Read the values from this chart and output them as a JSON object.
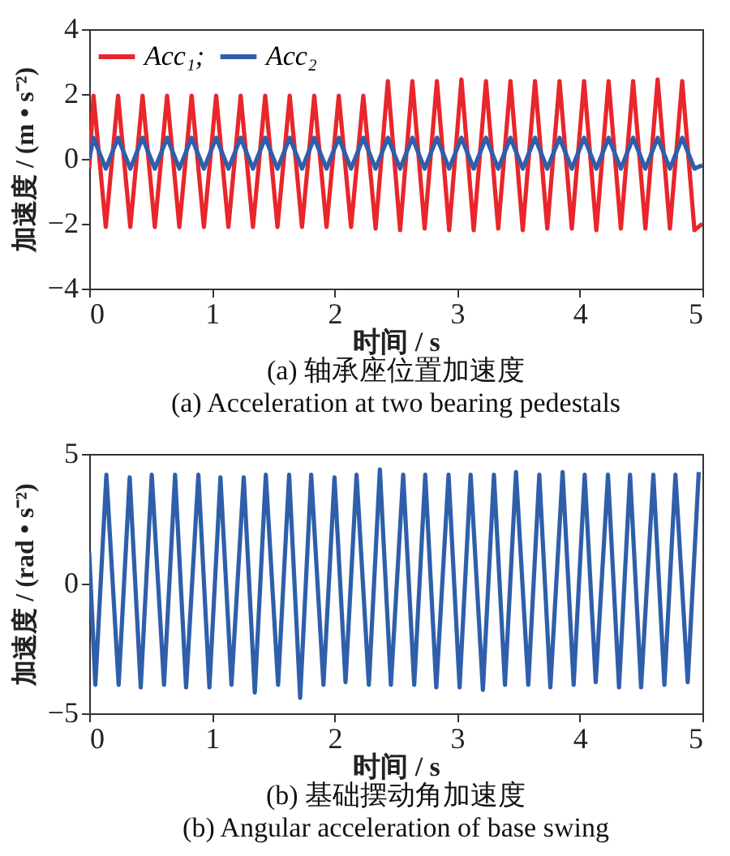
{
  "chart_data": [
    {
      "type": "line",
      "title": "(a) 轴承座位置加速度",
      "subtitle": "(a) Acceleration at two bearing pedestals",
      "xlabel": "时间 / s",
      "ylabel": "加速度 / (m • s⁻²)",
      "xlim": [
        0,
        5
      ],
      "xticks": [
        0,
        1,
        2,
        3,
        4,
        5
      ],
      "ylim": [
        -4,
        4
      ],
      "yticks": [
        -4,
        -2,
        0,
        2,
        4
      ],
      "grid": false,
      "legend": "top left",
      "series": [
        {
          "name": "Acc₁;",
          "color": "#e8262b",
          "x": [
            0,
            0.035,
            0.135,
            0.235,
            0.335,
            0.435,
            0.535,
            0.635,
            0.735,
            0.835,
            0.935,
            1.035,
            1.135,
            1.235,
            1.335,
            1.435,
            1.535,
            1.635,
            1.735,
            1.835,
            1.935,
            2.035,
            2.135,
            2.235,
            2.335,
            2.435,
            2.535,
            2.635,
            2.735,
            2.835,
            2.935,
            3.035,
            3.135,
            3.235,
            3.335,
            3.435,
            3.535,
            3.635,
            3.735,
            3.835,
            3.935,
            4.035,
            4.135,
            4.235,
            4.335,
            4.435,
            4.535,
            4.635,
            4.735,
            4.835,
            4.935,
            5
          ],
          "values": [
            -0.3,
            1.95,
            -2.1,
            1.95,
            -2.1,
            1.95,
            -2.1,
            1.95,
            -2.1,
            1.95,
            -2.1,
            1.95,
            -2.1,
            1.95,
            -2.1,
            1.95,
            -2.1,
            1.95,
            -2.1,
            1.95,
            -2.1,
            1.95,
            -2.1,
            1.95,
            -2.15,
            2.4,
            -2.2,
            2.4,
            -2.15,
            2.4,
            -2.2,
            2.45,
            -2.2,
            2.4,
            -2.15,
            2.4,
            -2.2,
            2.4,
            -2.15,
            2.4,
            -2.15,
            2.4,
            -2.2,
            2.4,
            -2.15,
            2.4,
            -2.15,
            2.45,
            -2.15,
            2.4,
            -2.2,
            -2.0
          ]
        },
        {
          "name": "Acc₂",
          "color": "#2f5faa",
          "x": [
            0,
            0.035,
            0.135,
            0.235,
            0.335,
            0.435,
            0.535,
            0.635,
            0.735,
            0.835,
            0.935,
            1.035,
            1.135,
            1.235,
            1.335,
            1.435,
            1.535,
            1.635,
            1.735,
            1.835,
            1.935,
            2.035,
            2.135,
            2.235,
            2.335,
            2.435,
            2.535,
            2.635,
            2.735,
            2.835,
            2.935,
            3.035,
            3.135,
            3.235,
            3.335,
            3.435,
            3.535,
            3.635,
            3.735,
            3.835,
            3.935,
            4.035,
            4.135,
            4.235,
            4.335,
            4.435,
            4.535,
            4.635,
            4.735,
            4.835,
            4.935,
            5
          ],
          "values": [
            0,
            0.65,
            -0.3,
            0.65,
            -0.3,
            0.65,
            -0.3,
            0.65,
            -0.3,
            0.65,
            -0.3,
            0.65,
            -0.3,
            0.65,
            -0.3,
            0.65,
            -0.3,
            0.65,
            -0.3,
            0.65,
            -0.3,
            0.65,
            -0.3,
            0.65,
            -0.3,
            0.65,
            -0.3,
            0.65,
            -0.3,
            0.65,
            -0.3,
            0.65,
            -0.3,
            0.65,
            -0.3,
            0.65,
            -0.3,
            0.65,
            -0.3,
            0.65,
            -0.3,
            0.65,
            -0.3,
            0.65,
            -0.3,
            0.65,
            -0.3,
            0.65,
            -0.3,
            0.65,
            -0.3,
            -0.2
          ]
        }
      ]
    },
    {
      "type": "line",
      "title": "(b) 基础摆动角加速度",
      "subtitle": "(b) Angular acceleration of base swing",
      "xlabel": "时间 / s",
      "ylabel": "加速度 / (rad • s⁻²)",
      "xlim": [
        0,
        5
      ],
      "xticks": [
        0,
        1,
        2,
        3,
        4,
        5
      ],
      "ylim": [
        -5,
        5
      ],
      "yticks": [
        -5,
        0,
        5
      ],
      "grid": false,
      "series": [
        {
          "color": "#2f5faa",
          "x": [
            0,
            0.05,
            0.14,
            0.24,
            0.33,
            0.42,
            0.51,
            0.61,
            0.7,
            0.79,
            0.89,
            0.98,
            1.07,
            1.16,
            1.26,
            1.35,
            1.44,
            1.54,
            1.63,
            1.72,
            1.81,
            1.91,
            2.0,
            2.09,
            2.18,
            2.28,
            2.37,
            2.46,
            2.56,
            2.65,
            2.74,
            2.83,
            2.93,
            3.02,
            3.11,
            3.21,
            3.3,
            3.39,
            3.48,
            3.58,
            3.67,
            3.76,
            3.86,
            3.95,
            4.04,
            4.13,
            4.23,
            4.32,
            4.41,
            4.5,
            4.6,
            4.69,
            4.78,
            4.88,
            4.97
          ],
          "values": [
            1.2,
            -3.9,
            4.2,
            -3.9,
            4.1,
            -4.0,
            4.2,
            -3.9,
            4.2,
            -4.0,
            4.2,
            -4.0,
            4.1,
            -3.9,
            4.1,
            -4.2,
            4.2,
            -3.9,
            4.2,
            -4.4,
            4.2,
            -3.9,
            4.1,
            -3.8,
            4.2,
            -3.9,
            4.4,
            -3.9,
            4.2,
            -3.9,
            4.2,
            -4.0,
            4.2,
            -4.0,
            4.2,
            -4.1,
            4.2,
            -3.9,
            4.3,
            -3.9,
            4.2,
            -4.0,
            4.3,
            -3.9,
            4.2,
            -3.8,
            4.2,
            -4.0,
            4.2,
            -4.0,
            4.2,
            -3.9,
            4.2,
            -3.8,
            4.3
          ]
        }
      ]
    }
  ]
}
